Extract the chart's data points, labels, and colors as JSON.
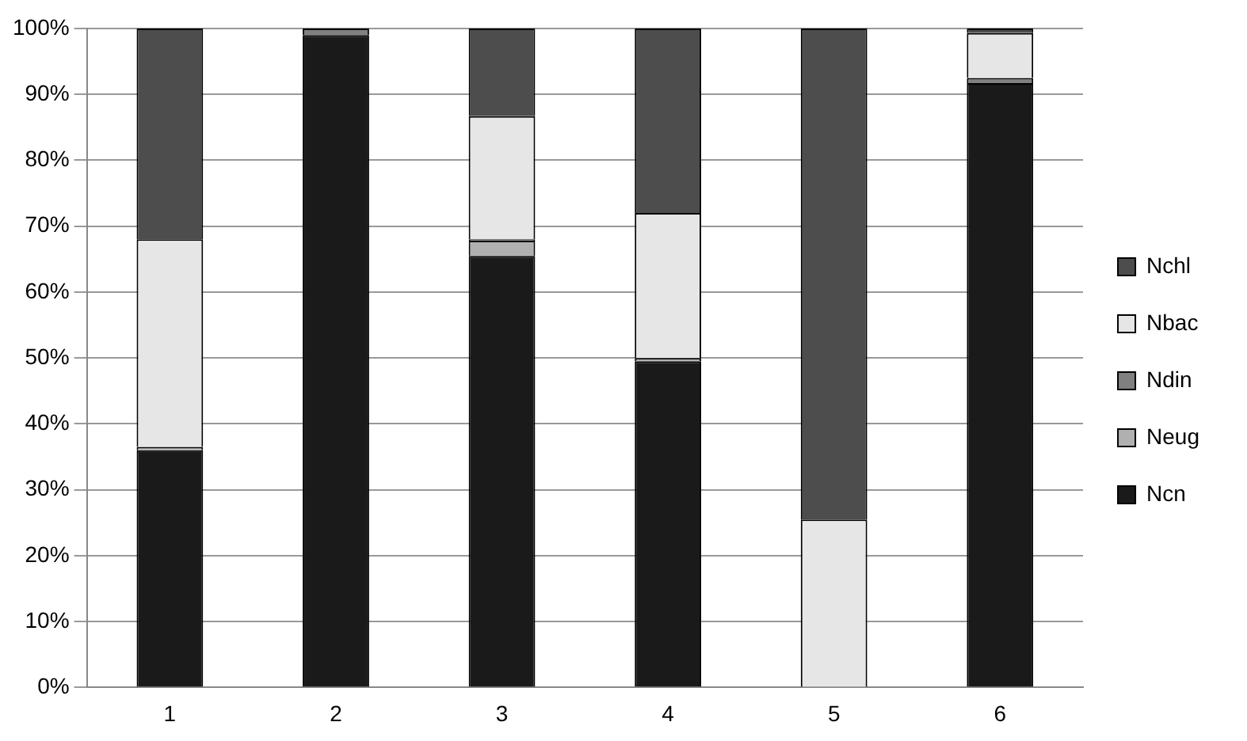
{
  "chart_data": {
    "type": "bar",
    "stacked": true,
    "categories": [
      "1",
      "2",
      "3",
      "4",
      "5",
      "6"
    ],
    "series": [
      {
        "name": "Ncn",
        "color": "#1a1a1a",
        "values": [
          36,
          99,
          65.5,
          49.5,
          0,
          91.7
        ]
      },
      {
        "name": "Neug",
        "color": "#b0b0b0",
        "values": [
          0.5,
          0,
          2.3,
          0.5,
          0,
          0
        ]
      },
      {
        "name": "Ndin",
        "color": "#808080",
        "values": [
          0,
          1,
          0.2,
          0,
          0,
          0.8
        ]
      },
      {
        "name": "Nbac",
        "color": "#e6e6e6",
        "values": [
          31.5,
          0,
          18.7,
          22,
          25.5,
          6.8
        ]
      },
      {
        "name": "Nchl",
        "color": "#4d4d4d",
        "values": [
          32,
          0,
          13.3,
          28,
          74.5,
          0.7
        ]
      }
    ],
    "ylim": [
      0,
      100
    ],
    "yticks": [
      {
        "value": 0,
        "label": "0%"
      },
      {
        "value": 10,
        "label": "10%"
      },
      {
        "value": 20,
        "label": "20%"
      },
      {
        "value": 30,
        "label": "30%"
      },
      {
        "value": 40,
        "label": "40%"
      },
      {
        "value": 50,
        "label": "50%"
      },
      {
        "value": 60,
        "label": "60%"
      },
      {
        "value": 70,
        "label": "70%"
      },
      {
        "value": 80,
        "label": "80%"
      },
      {
        "value": 90,
        "label": "90%"
      },
      {
        "value": 100,
        "label": "100%"
      }
    ],
    "grid": "y",
    "legend": "right"
  }
}
